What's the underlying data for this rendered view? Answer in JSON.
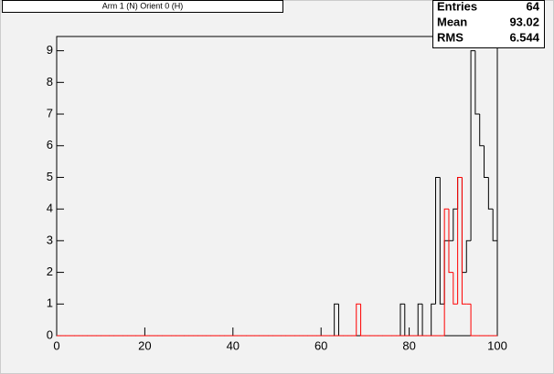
{
  "chart_data": {
    "type": "histogram",
    "title": "Arm 1 (N) Orient 0 (H)",
    "bins": [
      0,
      1,
      2,
      3,
      4,
      5,
      6,
      7,
      8,
      9,
      10,
      11,
      12,
      13,
      14,
      15,
      16,
      17,
      18,
      19,
      20,
      21,
      22,
      23,
      24,
      25,
      26,
      27,
      28,
      29,
      30,
      31,
      32,
      33,
      34,
      35,
      36,
      37,
      38,
      39,
      40,
      41,
      42,
      43,
      44,
      45,
      46,
      47,
      48,
      49,
      50,
      51,
      52,
      53,
      54,
      55,
      56,
      57,
      58,
      59,
      60,
      61,
      62,
      63,
      64,
      65,
      66,
      67,
      68,
      69,
      70,
      71,
      72,
      73,
      74,
      75,
      76,
      77,
      78,
      79,
      80,
      81,
      82,
      83,
      84,
      85,
      86,
      87,
      88,
      89,
      90,
      91,
      92,
      93,
      94,
      95,
      96,
      97,
      98,
      99,
      100
    ],
    "series": [
      {
        "color": "#000000",
        "values": [
          0,
          0,
          0,
          0,
          0,
          0,
          0,
          0,
          0,
          0,
          0,
          0,
          0,
          0,
          0,
          0,
          0,
          0,
          0,
          0,
          0,
          0,
          0,
          0,
          0,
          0,
          0,
          0,
          0,
          0,
          0,
          0,
          0,
          0,
          0,
          0,
          0,
          0,
          0,
          0,
          0,
          0,
          0,
          0,
          0,
          0,
          0,
          0,
          0,
          0,
          0,
          0,
          0,
          0,
          0,
          0,
          0,
          0,
          0,
          0,
          0,
          0,
          0,
          1,
          0,
          0,
          0,
          0,
          0,
          0,
          0,
          0,
          0,
          0,
          0,
          0,
          0,
          0,
          1,
          0,
          0,
          0,
          1,
          0,
          0,
          1,
          5,
          1,
          3,
          3,
          4,
          5,
          2,
          3,
          9,
          7,
          6,
          5,
          4,
          3
        ]
      },
      {
        "color": "#ff0000",
        "values": [
          0,
          0,
          0,
          0,
          0,
          0,
          0,
          0,
          0,
          0,
          0,
          0,
          0,
          0,
          0,
          0,
          0,
          0,
          0,
          0,
          0,
          0,
          0,
          0,
          0,
          0,
          0,
          0,
          0,
          0,
          0,
          0,
          0,
          0,
          0,
          0,
          0,
          0,
          0,
          0,
          0,
          0,
          0,
          0,
          0,
          0,
          0,
          0,
          0,
          0,
          0,
          0,
          0,
          0,
          0,
          0,
          0,
          0,
          0,
          0,
          0,
          0,
          0,
          0,
          0,
          0,
          0,
          0,
          1,
          0,
          0,
          0,
          0,
          0,
          0,
          0,
          0,
          0,
          0,
          0,
          0,
          0,
          0,
          0,
          0,
          0,
          0,
          0,
          4,
          2,
          1,
          5,
          1,
          1,
          0,
          0,
          0,
          0,
          0,
          0
        ]
      }
    ],
    "xlim": [
      0,
      100
    ],
    "ylim": [
      0,
      9.45
    ],
    "xticks": [
      0,
      20,
      40,
      60,
      80,
      100
    ],
    "yticks": [
      0,
      1,
      2,
      3,
      4,
      5,
      6,
      7,
      8,
      9
    ],
    "stats": {
      "labels": [
        "Entries",
        "Mean",
        "RMS"
      ],
      "values": [
        64,
        93.02,
        6.544
      ]
    }
  }
}
